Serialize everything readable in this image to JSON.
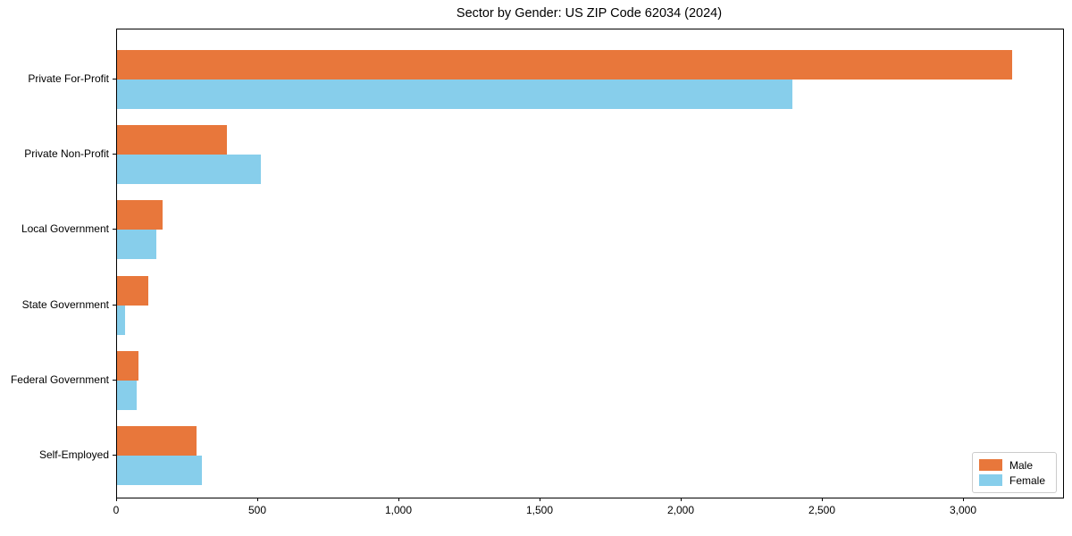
{
  "title": "Sector by Gender: US ZIP Code 62034 (2024)",
  "chart_data": {
    "type": "bar",
    "orientation": "horizontal",
    "title": "Sector by Gender: US ZIP Code 62034 (2024)",
    "categories": [
      "Private For-Profit",
      "Private Non-Profit",
      "Local Government",
      "State Government",
      "Federal Government",
      "Self-Employed"
    ],
    "series": [
      {
        "name": "Male",
        "color": "#e8773b",
        "values": [
          3170,
          390,
          160,
          110,
          75,
          280
        ]
      },
      {
        "name": "Female",
        "color": "#87ceeb",
        "values": [
          2390,
          510,
          140,
          30,
          70,
          300
        ]
      }
    ],
    "xlabel": "",
    "ylabel": "",
    "xlim": [
      0,
      3350
    ],
    "xticks": [
      0,
      500,
      1000,
      1500,
      2000,
      2500,
      3000
    ],
    "xtick_labels": [
      "0",
      "500",
      "1,000",
      "1,500",
      "2,000",
      "2,500",
      "3,000"
    ],
    "legend_position": "lower right",
    "grid": false,
    "bar_order_note": "Male bar on top, Female bar below within each category group"
  },
  "legend": {
    "male_label": "Male",
    "female_label": "Female"
  }
}
